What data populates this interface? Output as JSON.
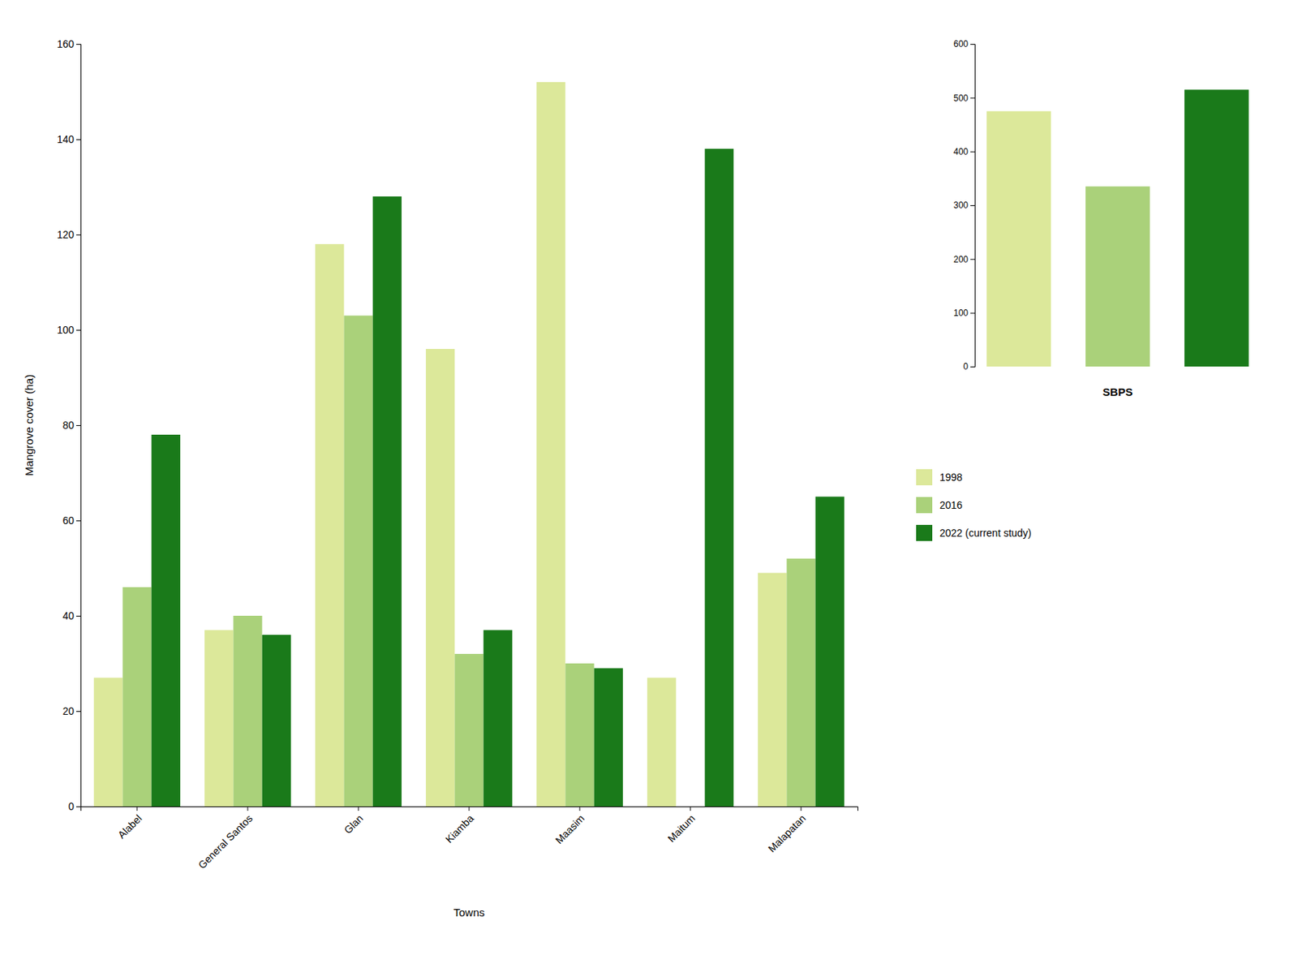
{
  "chart_data": [
    {
      "type": "bar",
      "categories": [
        "Alabel",
        "General Santos",
        "Glan",
        "Kiamba",
        "Maasim",
        "Maitum",
        "Malapatan"
      ],
      "series": [
        {
          "name": "1998",
          "color": "#dce89a",
          "values": [
            27,
            37,
            118,
            96,
            152,
            27,
            49
          ]
        },
        {
          "name": "2016",
          "color": "#aad17a",
          "values": [
            46,
            40,
            103,
            32,
            30,
            0,
            52
          ]
        },
        {
          "name": "2022 (current study)",
          "color": "#1a7a1a",
          "values": [
            78,
            36,
            128,
            37,
            29,
            138,
            65
          ]
        }
      ],
      "xlabel": "Towns",
      "ylabel": "Mangrove cover (ha)",
      "ylim": [
        0,
        160
      ],
      "yticks": [
        0,
        20,
        40,
        60,
        80,
        100,
        120,
        140,
        160
      ],
      "legend": "right",
      "grid": false
    },
    {
      "type": "bar",
      "categories": [
        null,
        null,
        null
      ],
      "values": [
        475,
        335,
        515
      ],
      "colors": [
        "#dce89a",
        "#aad17a",
        "#1a7a1a"
      ],
      "xlabel": "SBPS",
      "ylim": [
        0,
        600
      ],
      "yticks": [
        0,
        100,
        200,
        300,
        400,
        500,
        600
      ],
      "tick_labels": "y",
      "grid": false
    }
  ]
}
